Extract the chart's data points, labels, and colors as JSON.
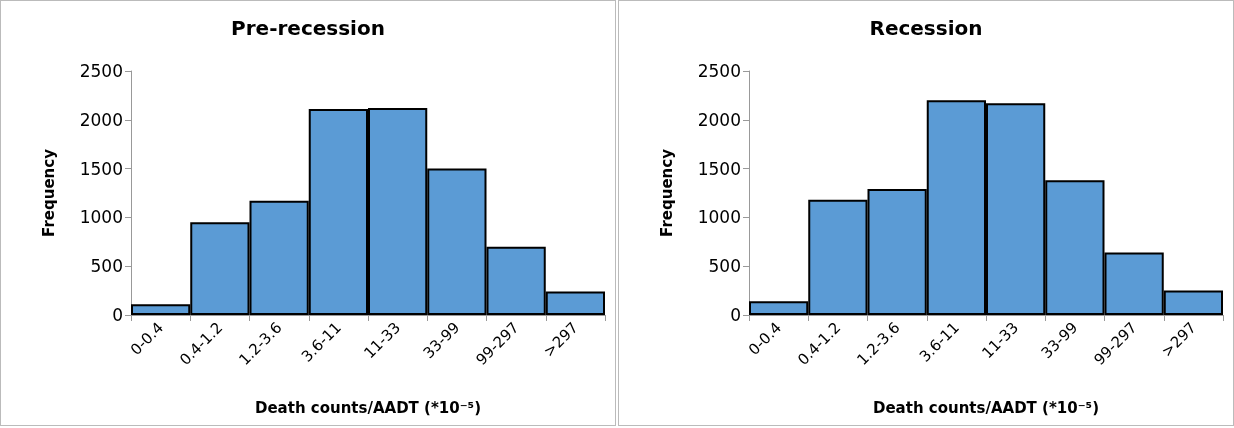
{
  "chart_data": [
    {
      "type": "bar",
      "title": "Pre-recession",
      "xlabel": "Death counts/AADT (*10⁻⁵)",
      "ylabel": "Frequency",
      "categories": [
        "0-0.4",
        "0.4-1.2",
        "1.2-3.6",
        "3.6-11",
        "11-33",
        "33-99",
        "99-297",
        ">297"
      ],
      "values": [
        110,
        950,
        1170,
        2110,
        2120,
        1500,
        700,
        240
      ],
      "color": "#5b9bd5",
      "ylim": [
        0,
        2500
      ],
      "yticks": [
        0,
        500,
        1000,
        1500,
        2000,
        2500
      ],
      "grid": false
    },
    {
      "type": "bar",
      "title": "Recession",
      "xlabel": "Death counts/AADT (*10⁻⁵)",
      "ylabel": "Frequency",
      "categories": [
        "0-0.4",
        "0.4-1.2",
        "1.2-3.6",
        "3.6-11",
        "11-33",
        "33-99",
        "99-297",
        ">297"
      ],
      "values": [
        140,
        1180,
        1290,
        2200,
        2170,
        1380,
        640,
        250
      ],
      "color": "#5b9bd5",
      "ylim": [
        0,
        2500
      ],
      "yticks": [
        0,
        500,
        1000,
        1500,
        2000,
        2500
      ],
      "grid": false
    }
  ]
}
